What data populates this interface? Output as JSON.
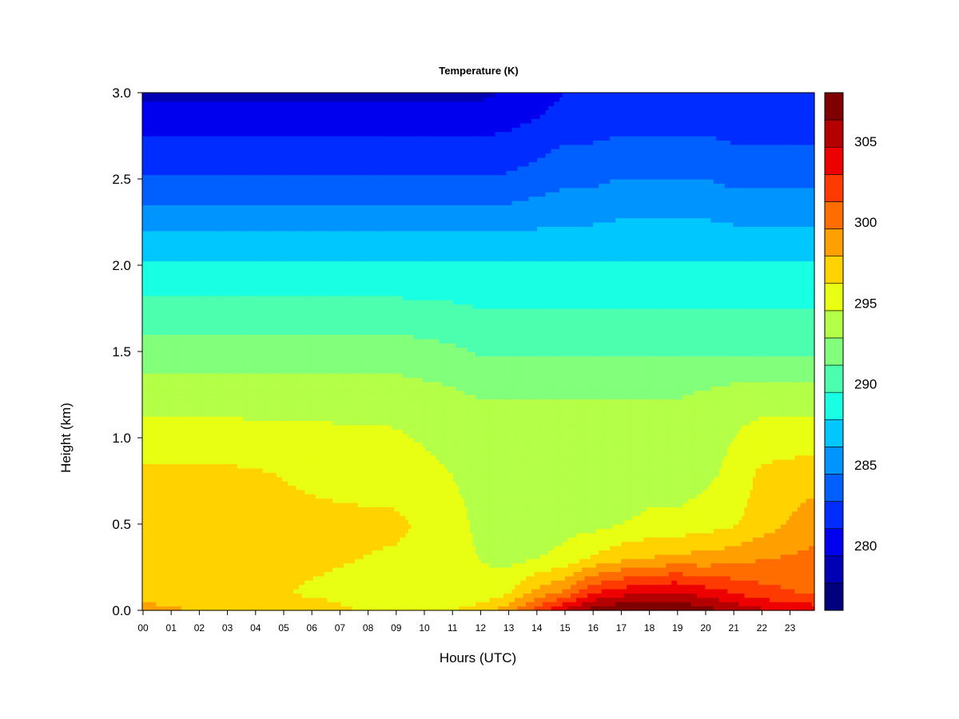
{
  "chart_data": {
    "type": "heatmap",
    "title": "Temperature (K)",
    "xlabel": "Hours (UTC)",
    "ylabel": "Height (km)",
    "x_ticks": [
      "00",
      "01",
      "02",
      "03",
      "04",
      "05",
      "06",
      "07",
      "08",
      "09",
      "10",
      "11",
      "12",
      "13",
      "14",
      "15",
      "16",
      "17",
      "18",
      "19",
      "20",
      "21",
      "22",
      "23"
    ],
    "xlim": [
      0,
      23.9
    ],
    "y_ticks": [
      "0.0",
      "0.5",
      "1.0",
      "1.5",
      "2.0",
      "2.5",
      "3.0"
    ],
    "ylim": [
      0,
      3.0
    ],
    "colorbar": {
      "range": [
        276,
        308
      ],
      "step": 2,
      "tick_labels": [
        "280",
        "285",
        "290",
        "295",
        "300",
        "305"
      ],
      "tick_values": [
        280,
        285,
        290,
        295,
        300,
        305
      ],
      "colors": [
        "#00007f",
        "#0000b4",
        "#0000ef",
        "#002cff",
        "#0060ff",
        "#0094ff",
        "#00c8ff",
        "#18ffe3",
        "#4cffae",
        "#82ff7b",
        "#b4ff47",
        "#e8ff13",
        "#ffd200",
        "#ffa000",
        "#ff6c00",
        "#ff3a00",
        "#ef0000",
        "#b40000",
        "#7f0000"
      ]
    },
    "profile_hours": [
      0,
      3,
      6,
      9,
      11,
      12,
      13,
      14,
      15,
      16,
      17,
      18,
      19,
      20,
      21,
      22,
      23.9
    ],
    "profile_heights": [
      0,
      0.1,
      0.3,
      0.5,
      0.8,
      1.2,
      1.5,
      2.0,
      2.5,
      3.0
    ],
    "temperature_profiles": [
      [
        299,
        296.5,
        297,
        296.5,
        296.5,
        294,
        292,
        288,
        283,
        279
      ],
      [
        297,
        297,
        296.5,
        296.5,
        296.5,
        294,
        292,
        288,
        283,
        279
      ],
      [
        297,
        296,
        296.5,
        296.5,
        296,
        294,
        292,
        288,
        283,
        279
      ],
      [
        295.5,
        295.5,
        296,
        296.5,
        295.5,
        294,
        292,
        288,
        283,
        279
      ],
      [
        296,
        296,
        295.5,
        295.5,
        294.5,
        293.5,
        291.5,
        288,
        283,
        279
      ],
      [
        297,
        295,
        294.5,
        294,
        293.5,
        293,
        291,
        288,
        283,
        279
      ],
      [
        299,
        296,
        294,
        293.5,
        293,
        293,
        291,
        288,
        283,
        279.5
      ],
      [
        302,
        298.5,
        294.5,
        293.5,
        293,
        293,
        291,
        288,
        283.5,
        280
      ],
      [
        305,
        300,
        295,
        294,
        293,
        293,
        291,
        288,
        284,
        281
      ],
      [
        307,
        303,
        296.5,
        294,
        293,
        293,
        291,
        288,
        284,
        281
      ],
      [
        308,
        304,
        297.5,
        294.5,
        293,
        293,
        291,
        288,
        284.5,
        281
      ],
      [
        308,
        305,
        298,
        295,
        293.5,
        293,
        291,
        288,
        284.5,
        281
      ],
      [
        308,
        305,
        298.5,
        295,
        293.5,
        293,
        291,
        288,
        284.5,
        281
      ],
      [
        307,
        304,
        298.5,
        295.5,
        294,
        293.5,
        291,
        288,
        284.5,
        281
      ],
      [
        306,
        303,
        299,
        296,
        295,
        294,
        291,
        288,
        284,
        281
      ],
      [
        305,
        302,
        299.5,
        297,
        296.5,
        294,
        291,
        288,
        284,
        281
      ],
      [
        304,
        301,
        300,
        299,
        297,
        294,
        291,
        288,
        284,
        281
      ]
    ]
  }
}
